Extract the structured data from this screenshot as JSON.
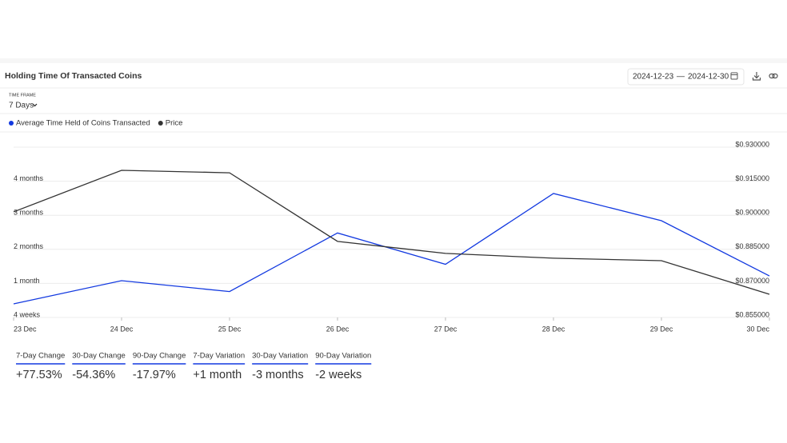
{
  "chart_data": {
    "type": "line",
    "title": "Holding Time Of Transacted Coins",
    "date_start": "2024-12-23",
    "date_separator": "—",
    "date_end": "2024-12-30",
    "timeframe_label": "TIME FRAME",
    "timeframe": "7 Days",
    "categories": [
      "23 Dec",
      "24 Dec",
      "25 Dec",
      "26 Dec",
      "27 Dec",
      "28 Dec",
      "29 Dec",
      "30 Dec"
    ],
    "series": [
      {
        "name": "Average Time Held of Coins Transacted",
        "color": "#1239e0",
        "values": [
          35,
          52,
          44,
          87,
          64,
          116,
          96,
          55.5
        ]
      },
      {
        "name": "Price",
        "color": "#333333",
        "axis": "y2",
        "values": [
          0.9015,
          0.9198,
          0.9187,
          0.8885,
          0.8832,
          0.8811,
          0.88,
          0.8652
        ]
      }
    ],
    "ylim": [
      25,
      150
    ],
    "yticks": [
      {
        "value": 25,
        "label": "4 weeks"
      },
      {
        "value": 50,
        "label": "1 month"
      },
      {
        "value": 75,
        "label": "2 months"
      },
      {
        "value": 100,
        "label": "3 months"
      },
      {
        "value": 125,
        "label": "4 months"
      },
      {
        "value": 150,
        "label": ""
      }
    ],
    "y2lim": [
      0.855,
      0.93
    ],
    "y2ticks": [
      {
        "value": 0.855,
        "label": "$0.855000"
      },
      {
        "value": 0.87,
        "label": "$0.870000"
      },
      {
        "value": 0.885,
        "label": "$0.885000"
      },
      {
        "value": 0.9,
        "label": "$0.900000"
      },
      {
        "value": 0.915,
        "label": "$0.915000"
      },
      {
        "value": 0.93,
        "label": "$0.930000"
      }
    ],
    "grid": true
  },
  "stats": [
    {
      "label": "7-Day Change",
      "value": "+77.53%"
    },
    {
      "label": "30-Day Change",
      "value": "-54.36%"
    },
    {
      "label": "90-Day Change",
      "value": "-17.97%"
    },
    {
      "label": "7-Day Variation",
      "value": "+1 month"
    },
    {
      "label": "30-Day Variation",
      "value": "-3 months"
    },
    {
      "label": "90-Day Variation",
      "value": "-2 weeks"
    }
  ]
}
